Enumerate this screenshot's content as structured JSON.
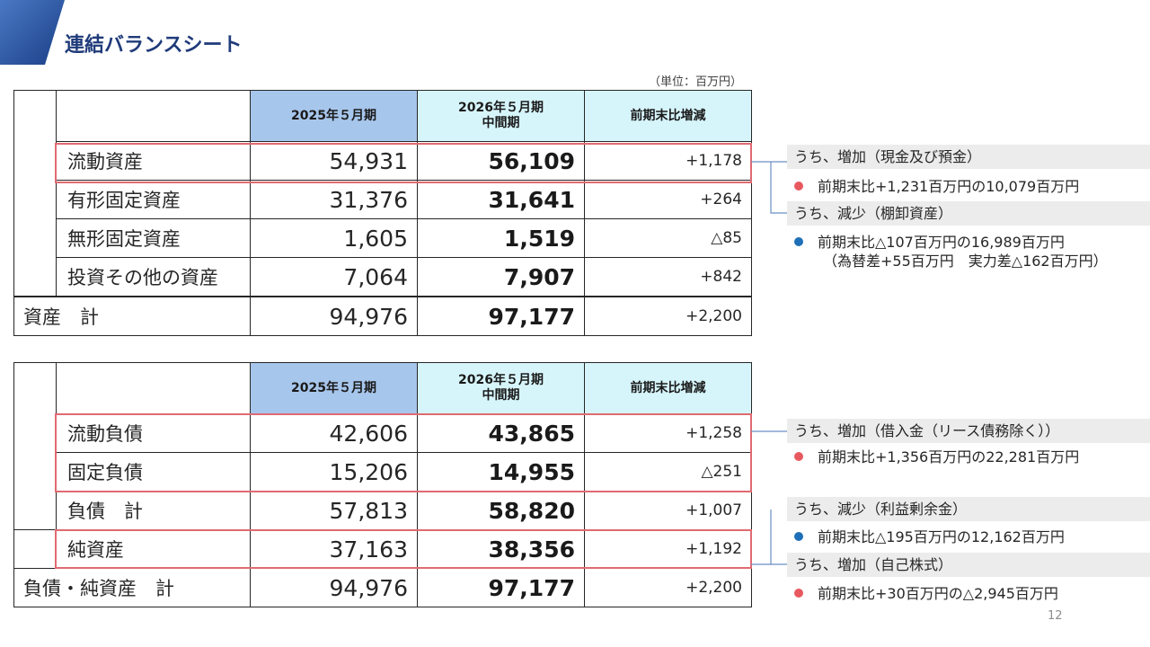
{
  "title": "連結バランスシート",
  "unit": "（単位：百万円）",
  "page_number": "12",
  "columns": [
    "2025年５月期",
    "2026年５月期\n中間期",
    "前期末比増減"
  ],
  "assets": {
    "rows": [
      {
        "label": "流動資産",
        "prev": "54,931",
        "curr": "56,109",
        "diff": "+1,178"
      },
      {
        "label": "有形固定資産",
        "prev": "31,376",
        "curr": "31,641",
        "diff": "+264"
      },
      {
        "label": "無形固定資産",
        "prev": "1,605",
        "curr": "1,519",
        "diff": "△85"
      },
      {
        "label": "投資その他の資産",
        "prev": "7,064",
        "curr": "7,907",
        "diff": "+842"
      }
    ],
    "total": {
      "label": "資産　計",
      "prev": "94,976",
      "curr": "97,177",
      "diff": "+2,200"
    }
  },
  "liabilities": {
    "rows": [
      {
        "label": "流動負債",
        "prev": "42,606",
        "curr": "43,865",
        "diff": "+1,258"
      },
      {
        "label": "固定負債",
        "prev": "15,206",
        "curr": "14,955",
        "diff": "△251"
      },
      {
        "label": "負債　計",
        "prev": "57,813",
        "curr": "58,820",
        "diff": "+1,007"
      }
    ],
    "net_assets": {
      "label": "純資産",
      "prev": "37,163",
      "curr": "38,356",
      "diff": "+1,192"
    },
    "total": {
      "label": "負債・純資産　計",
      "prev": "94,976",
      "curr": "97,177",
      "diff": "+2,200"
    }
  },
  "notes": {
    "n1_head": "うち、増加（現金及び預金）",
    "n1_body": "前期末比+1,231百万円の10,079百万円",
    "n2_head": "うち、減少（棚卸資産）",
    "n2_body": "前期末比△107百万円の16,989百万円",
    "n2_sub": "（為替差+55百万円　実力差△162百万円）",
    "n3_head": "うち、増加（借入金（リース債務除く））",
    "n3_body": "前期末比+1,356百万円の22,281百万円",
    "n4_head": "うち、減少（利益剰余金）",
    "n4_body": "前期末比△195百万円の12,162百万円",
    "n5_head": "うち、増加（自己株式）",
    "n5_body": "前期末比+30百万円の△2,945百万円"
  },
  "colors": {
    "title": "#1f3b7a",
    "header_prev": "#a7c6ec",
    "header_curr": "#d6f5fb",
    "highlight_box": "#e06a72",
    "dot_increase": "#e8595f",
    "dot_decrease": "#1e6fb8",
    "note_header_bg": "#ececec"
  }
}
